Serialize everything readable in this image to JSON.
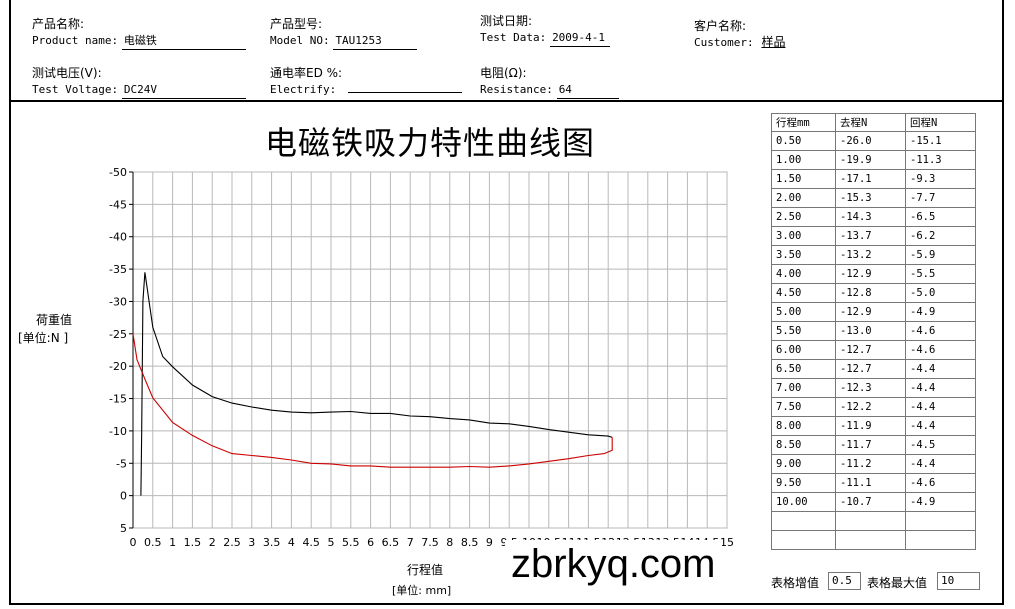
{
  "header": {
    "product_name": {
      "cn": "产品名称:",
      "en": "Product name:",
      "value": "电磁铁"
    },
    "model_no": {
      "cn": "产品型号:",
      "en": "Model NO:",
      "value": "TAU1253"
    },
    "test_date": {
      "cn": "测试日期:",
      "en": "Test Data:",
      "value": "2009-4-1"
    },
    "customer": {
      "cn": "客户名称:",
      "en": "Customer:",
      "value": "样品"
    },
    "test_voltage": {
      "cn": "测试电压(V):",
      "en": "Test Voltage:",
      "value": "DC24V"
    },
    "electrify": {
      "cn": "通电率ED %:",
      "en": "Electrify:",
      "value": ""
    },
    "resistance": {
      "cn": "电阻(Ω):",
      "en": "Resistance:",
      "value": "64"
    }
  },
  "watermark": "zbrkyq.com",
  "chart_data": {
    "type": "line",
    "title": "电磁铁吸力特性曲线图",
    "xlabel": "行程值",
    "xunit": "[单位: mm]",
    "ylabel": "荷重值",
    "yunit": "[单位:N ]",
    "xlim": [
      0,
      15
    ],
    "ylim": [
      -50,
      5
    ],
    "y_inverted": true,
    "x_ticks": [
      0,
      0.5,
      1,
      1.5,
      2,
      2.5,
      3,
      3.5,
      4,
      4.5,
      5,
      5.5,
      6,
      6.5,
      7,
      7.5,
      8,
      8.5,
      9,
      9.5,
      10,
      10.5,
      11,
      11.5,
      12,
      12.5,
      13,
      13.5,
      14,
      14.5,
      15
    ],
    "y_ticks": [
      -50,
      -45,
      -40,
      -35,
      -30,
      -25,
      -20,
      -15,
      -10,
      -5,
      0,
      5
    ],
    "grid": true,
    "series": [
      {
        "color": "#000000",
        "x": [
          0.2,
          0.22,
          0.25,
          0.3,
          0.5,
          0.75,
          1.0,
          1.5,
          2.0,
          2.5,
          3.0,
          3.5,
          4.0,
          4.5,
          5.0,
          5.5,
          6.0,
          6.5,
          7.0,
          7.5,
          8.0,
          8.5,
          9.0,
          9.5,
          10.0,
          10.5,
          11.0,
          11.5,
          12.0,
          12.1
        ],
        "y": [
          0,
          -10,
          -30,
          -34.5,
          -26.0,
          -21.5,
          -19.9,
          -17.1,
          -15.3,
          -14.3,
          -13.7,
          -13.2,
          -12.9,
          -12.8,
          -12.9,
          -13.0,
          -12.7,
          -12.7,
          -12.3,
          -12.2,
          -11.9,
          -11.7,
          -11.2,
          -11.1,
          -10.7,
          -10.2,
          -9.8,
          -9.4,
          -9.2,
          -9.0
        ]
      },
      {
        "color": "#cc0000",
        "x": [
          0.0,
          0.1,
          0.3,
          0.5,
          1.0,
          1.5,
          2.0,
          2.5,
          3.0,
          3.5,
          4.0,
          4.5,
          5.0,
          5.5,
          6.0,
          6.5,
          7.0,
          7.5,
          8.0,
          8.5,
          9.0,
          9.5,
          10.0,
          10.5,
          11.0,
          11.5,
          11.9,
          12.1,
          12.1
        ],
        "y": [
          -25.0,
          -21.0,
          -18.0,
          -15.1,
          -11.3,
          -9.3,
          -7.7,
          -6.5,
          -6.2,
          -5.9,
          -5.5,
          -5.0,
          -4.9,
          -4.6,
          -4.6,
          -4.4,
          -4.4,
          -4.4,
          -4.4,
          -4.5,
          -4.4,
          -4.6,
          -4.9,
          -5.3,
          -5.7,
          -6.2,
          -6.5,
          -7.0,
          -9.0
        ]
      }
    ]
  },
  "table": {
    "headers": [
      "行程mm",
      "去程N",
      "回程N"
    ],
    "rows": [
      [
        "0.50",
        "-26.0",
        "-15.1"
      ],
      [
        "1.00",
        "-19.9",
        "-11.3"
      ],
      [
        "1.50",
        "-17.1",
        "-9.3"
      ],
      [
        "2.00",
        "-15.3",
        "-7.7"
      ],
      [
        "2.50",
        "-14.3",
        "-6.5"
      ],
      [
        "3.00",
        "-13.7",
        "-6.2"
      ],
      [
        "3.50",
        "-13.2",
        "-5.9"
      ],
      [
        "4.00",
        "-12.9",
        "-5.5"
      ],
      [
        "4.50",
        "-12.8",
        "-5.0"
      ],
      [
        "5.00",
        "-12.9",
        "-4.9"
      ],
      [
        "5.50",
        "-13.0",
        "-4.6"
      ],
      [
        "6.00",
        "-12.7",
        "-4.6"
      ],
      [
        "6.50",
        "-12.7",
        "-4.4"
      ],
      [
        "7.00",
        "-12.3",
        "-4.4"
      ],
      [
        "7.50",
        "-12.2",
        "-4.4"
      ],
      [
        "8.00",
        "-11.9",
        "-4.4"
      ],
      [
        "8.50",
        "-11.7",
        "-4.5"
      ],
      [
        "9.00",
        "-11.2",
        "-4.4"
      ],
      [
        "9.50",
        "-11.1",
        "-4.6"
      ],
      [
        "10.00",
        "-10.7",
        "-4.9"
      ],
      [
        "",
        "",
        ""
      ],
      [
        "",
        "",
        ""
      ]
    ]
  },
  "footer": {
    "step_label": "表格增值",
    "step_value": "0.5",
    "max_label": "表格最大值",
    "max_value": "10"
  }
}
